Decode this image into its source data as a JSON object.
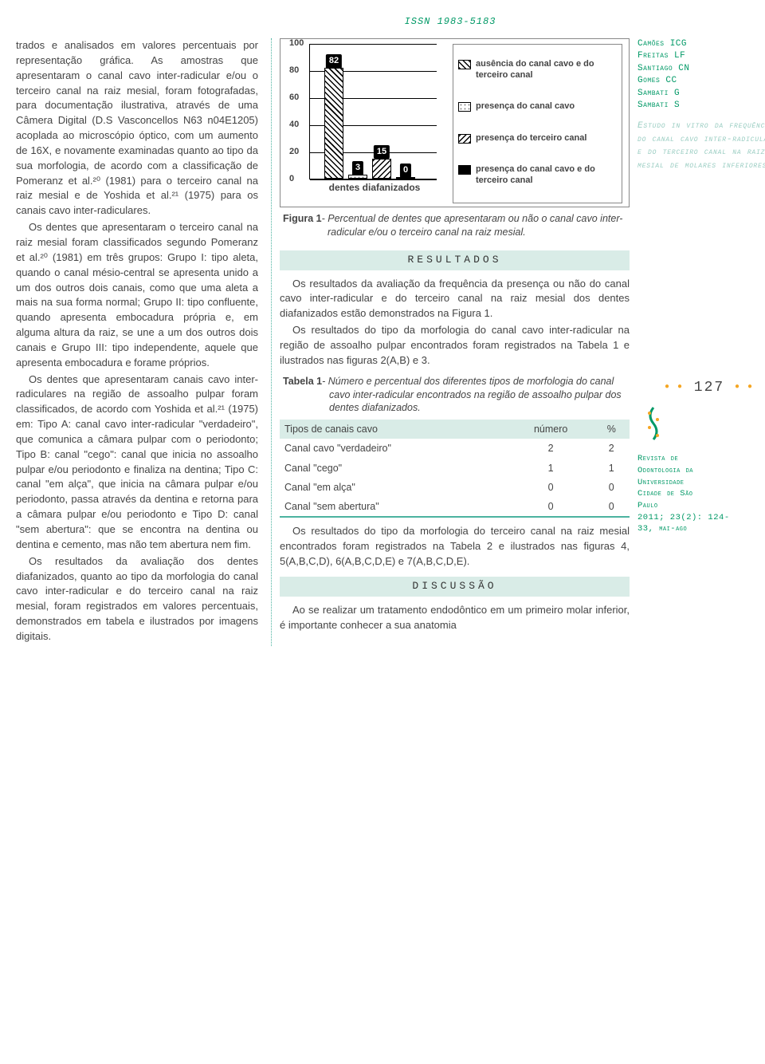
{
  "issn": "ISSN 1983-5183",
  "left_column": {
    "para1": "trados e analisados em valores percentuais por representação gráfica. As amostras que apresentaram o canal cavo inter-radicular e/ou o terceiro canal na raiz mesial, foram fotografadas, para documentação ilustrativa, através de uma Câmera Digital (D.S Vasconcellos N63 n04E1205) acoplada ao microscópio óptico, com um aumento de 16X, e novamente examinadas quanto ao tipo da sua morfologia, de acordo com a classificação de Pomeranz et al.²⁰ (1981) para o terceiro canal na raiz mesial e de Yoshida et al.²¹ (1975) para os canais cavo inter-radiculares.",
    "para2": "Os dentes que apresentaram o terceiro canal na raiz mesial foram classificados segundo Pomeranz et al.²⁰ (1981) em três grupos: Grupo I: tipo aleta, quando o canal mésio-central se apresenta unido a um dos outros dois canais, como que uma aleta a mais na sua forma normal; Grupo II: tipo confluente, quando apresenta embocadura própria e, em alguma altura da raiz, se une a um dos outros dois canais e Grupo III: tipo independente, aquele que apresenta embocadura e forame próprios.",
    "para3": "Os dentes que apresentaram canais cavo inter-radiculares na região de assoalho pulpar foram classificados, de acordo com Yoshida et al.²¹ (1975) em: Tipo A: canal cavo inter-radicular \"verdadeiro\", que comunica a câmara pulpar com o periodonto; Tipo B: canal \"cego\": canal que inicia no assoalho pulpar e/ou periodonto e finaliza na dentina; Tipo C: canal \"em alça\", que inicia na câmara pulpar e/ou periodonto, passa através da dentina e retorna para a câmara pulpar e/ou periodonto e Tipo D: canal \"sem abertura\": que se encontra na dentina ou dentina e cemento, mas não tem abertura nem fim.",
    "para4": "Os resultados da avaliação dos dentes diafanizados, quanto ao tipo da morfologia do canal cavo inter-radicular e do terceiro canal na raiz mesial, foram registrados em valores percentuais, demonstrados em tabela e ilustrados por imagens digitais."
  },
  "chart": {
    "type": "bar",
    "y_ticks": [
      0,
      20,
      40,
      60,
      80,
      100
    ],
    "ylim": [
      0,
      100
    ],
    "bars": [
      {
        "value": 82,
        "pattern": "diag"
      },
      {
        "value": 3,
        "pattern": "dots"
      },
      {
        "value": 15,
        "pattern": "diag2"
      },
      {
        "value": 0,
        "pattern": "solid"
      }
    ],
    "x_label": "dentes diafanizados",
    "legend": [
      {
        "pattern": "diag",
        "text": "ausência do canal cavo e do terceiro canal"
      },
      {
        "pattern": "dots",
        "text": "presença do canal cavo"
      },
      {
        "pattern": "diag2",
        "text": "presença do terceiro canal"
      },
      {
        "pattern": "solid",
        "text": "presença do canal cavo e do terceiro canal"
      }
    ],
    "caption_label": "Figura 1",
    "caption_text": "- Percentual de dentes que apresentaram ou não o canal cavo inter-radicular e/ou o terceiro canal na raiz mesial."
  },
  "sections": {
    "resultados_header": "RESULTADOS",
    "resultados_p1": "Os resultados da avaliação da frequência da presença ou não do canal cavo inter-radicular e do terceiro canal na raiz mesial dos dentes diafanizados estão demonstrados na Figura 1.",
    "resultados_p2": "Os resultados do tipo da morfologia do canal cavo inter-radicular na região de assoalho pulpar encontrados foram registrados na Tabela 1 e ilustrados nas figuras 2(A,B) e 3.",
    "resultados_p3": "Os resultados do tipo da morfologia do terceiro canal na raiz mesial encontrados foram registrados na Tabela 2 e ilustrados nas figuras 4, 5(A,B,C,D), 6(A,B,C,D,E) e 7(A,B,C,D,E).",
    "discussao_header": "DISCUSSÃO",
    "discussao_p1": "Ao se realizar um tratamento endodôntico em um primeiro molar inferior, é importante conhecer a sua anatomia"
  },
  "table1": {
    "caption_label": "Tabela 1",
    "caption_text": "- Número e percentual dos diferentes tipos de morfologia do canal cavo inter-radicular encontrados na região de assoalho pulpar dos dentes diafanizados.",
    "columns": [
      "Tipos de canais cavo",
      "número",
      "%"
    ],
    "rows": [
      [
        "Canal cavo \"verdadeiro\"",
        "2",
        "2"
      ],
      [
        "Canal \"cego\"",
        "1",
        "1"
      ],
      [
        "Canal \"em alça\"",
        "0",
        "0"
      ],
      [
        "Canal \"sem abertura\"",
        "0",
        "0"
      ]
    ]
  },
  "sidebar": {
    "authors": [
      "Camões ICG",
      "Freitas LF",
      "Santiago CN",
      "Gomes CC",
      "Sambati G",
      "Sambati S"
    ],
    "title": "Estudo in vitro da frequência do canal cavo inter-radicular e do terceiro canal na raiz mesial de molares inferiores",
    "page_number": "127",
    "journal": [
      "Revista de",
      "Odontologia da",
      "Universidade",
      "Cidade de São",
      "Paulo",
      "2011; 23(2): 124-",
      "33, mai-ago"
    ]
  },
  "colors": {
    "accent": "#009966",
    "accent_light": "#9acdc2",
    "section_bg": "#d9ece7",
    "table_border": "#4cb3a0",
    "dotted_border": "#4cb3a0"
  }
}
